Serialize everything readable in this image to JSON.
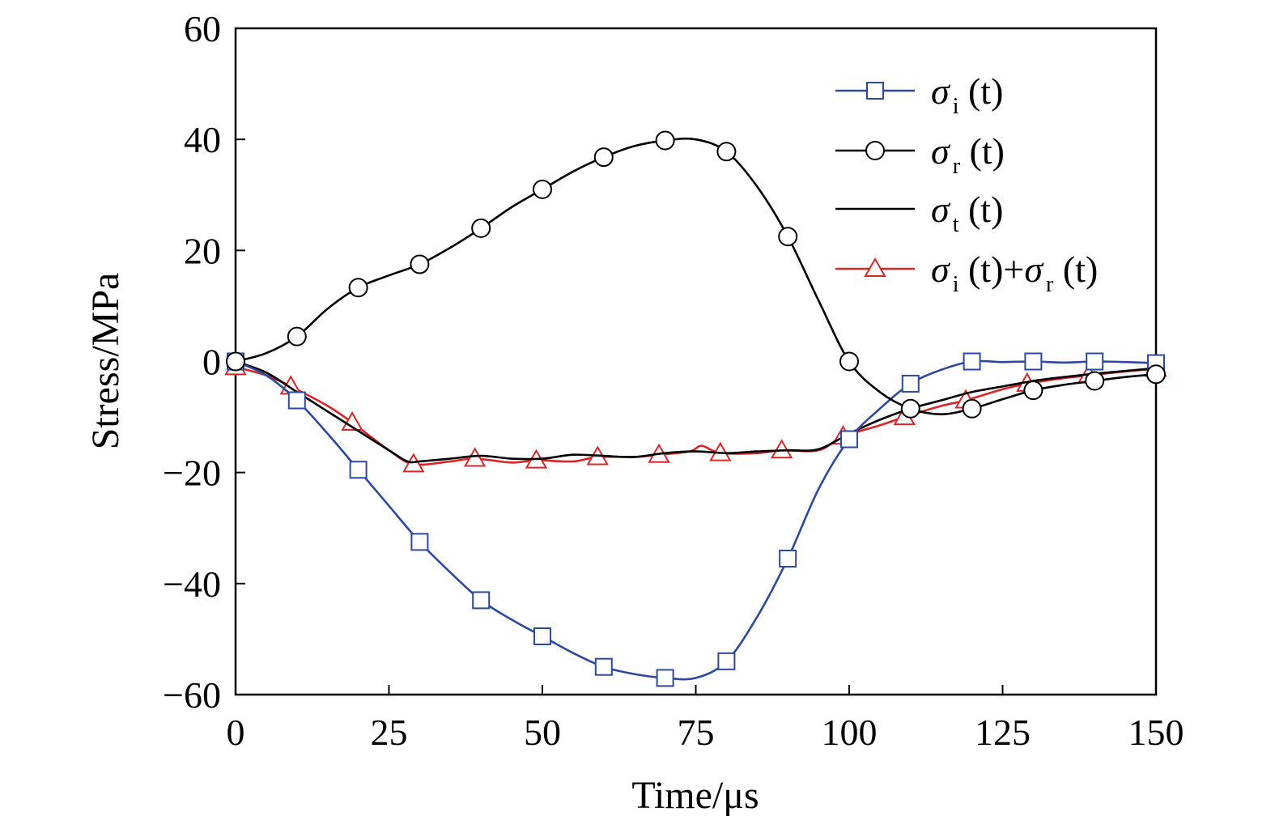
{
  "chart_data": {
    "type": "line",
    "xlabel": "Time/μs",
    "ylabel": "Stress/MPa",
    "xlim": [
      0,
      150
    ],
    "ylim": [
      -60,
      60
    ],
    "xticks": [
      0,
      25,
      50,
      75,
      100,
      125,
      150
    ],
    "yticks": [
      -60,
      -40,
      -20,
      0,
      20,
      40,
      60
    ],
    "xtick_labels": [
      "0",
      "25",
      "50",
      "75",
      "100",
      "125",
      "150"
    ],
    "ytick_labels": [
      "−60",
      "−40",
      "−20",
      "0",
      "20",
      "40",
      "60"
    ],
    "grid": false,
    "legend_position": "top-right",
    "series": [
      {
        "name": "σi (t)",
        "legend": {
          "symbol": "σ",
          "sub": "i",
          "rest": " (t)"
        },
        "color": "#2b4a9e",
        "marker": "square",
        "x": [
          0,
          5,
          10,
          15,
          20,
          25,
          30,
          35,
          40,
          45,
          50,
          55,
          60,
          65,
          70,
          75,
          80,
          85,
          90,
          95,
          100,
          105,
          110,
          115,
          120,
          125,
          130,
          135,
          140,
          145,
          150
        ],
        "y": [
          0,
          -2.5,
          -7,
          -13,
          -19.5,
          -26,
          -32.5,
          -38,
          -43,
          -46.5,
          -49.5,
          -52.5,
          -55,
          -56.3,
          -57,
          -57,
          -54,
          -46,
          -35.5,
          -23,
          -14,
          -8.5,
          -4,
          -1.5,
          0,
          -0.1,
          0,
          -0.2,
          0,
          -0.1,
          -0.3
        ],
        "marker_x": [
          0,
          10,
          20,
          30,
          40,
          50,
          60,
          70,
          80,
          90,
          100,
          110,
          120,
          130,
          140,
          150
        ],
        "marker_y": [
          0,
          -7,
          -19.5,
          -32.5,
          -43,
          -49.5,
          -55,
          -57,
          -54,
          -35.5,
          -14,
          -4,
          0,
          0,
          0,
          -0.3
        ]
      },
      {
        "name": "σr (t)",
        "legend": {
          "symbol": "σ",
          "sub": "r",
          "rest": " (t)"
        },
        "color": "#000000",
        "marker": "circle",
        "x": [
          0,
          5,
          10,
          15,
          20,
          25,
          30,
          35,
          40,
          45,
          50,
          55,
          60,
          65,
          70,
          75,
          80,
          85,
          90,
          95,
          100,
          105,
          110,
          115,
          120,
          125,
          130,
          135,
          140,
          145,
          150
        ],
        "y": [
          0,
          1.5,
          4.5,
          9.5,
          13.3,
          15.5,
          17.5,
          20.5,
          24,
          27.8,
          31,
          34.2,
          36.8,
          38.8,
          39.8,
          40,
          37.8,
          31.5,
          22.5,
          11,
          0,
          -5.5,
          -8.5,
          -9.5,
          -8.5,
          -6.8,
          -5.2,
          -4.2,
          -3.5,
          -2.8,
          -2.3
        ],
        "marker_x": [
          0,
          10,
          20,
          30,
          40,
          50,
          60,
          70,
          80,
          90,
          100,
          110,
          120,
          130,
          140,
          150
        ],
        "marker_y": [
          0,
          4.5,
          13.3,
          17.5,
          24,
          31,
          36.8,
          39.8,
          37.8,
          22.5,
          0,
          -8.5,
          -8.5,
          -5.2,
          -3.5,
          -2.3
        ]
      },
      {
        "name": "σt (t)",
        "legend": {
          "symbol": "σ",
          "sub": "t",
          "rest": " (t)"
        },
        "color": "#000000",
        "marker": "none",
        "x": [
          0,
          5,
          10,
          15,
          20,
          25,
          28,
          30,
          35,
          40,
          45,
          50,
          55,
          60,
          65,
          70,
          75,
          80,
          85,
          90,
          95,
          100,
          105,
          110,
          115,
          120,
          125,
          130,
          135,
          140,
          145,
          150
        ],
        "y": [
          0,
          -2,
          -5.5,
          -9,
          -12.5,
          -16,
          -18,
          -18,
          -17.5,
          -17,
          -17.5,
          -17.5,
          -16.8,
          -17,
          -17.2,
          -16.5,
          -16.2,
          -16.5,
          -16.2,
          -16,
          -15.8,
          -13,
          -10.5,
          -8.5,
          -7,
          -5.5,
          -4.5,
          -3.5,
          -2.8,
          -2.2,
          -1.7,
          -1.2
        ]
      },
      {
        "name": "σi (t)+σr (t)",
        "legend": {
          "symbol": "σ",
          "sub": "i",
          "rest": " (t)+",
          "symbol2": "σ",
          "sub2": "r",
          "rest2": " (t)"
        },
        "color": "#d62728",
        "marker": "triangle",
        "x": [
          0,
          5,
          9,
          15,
          19,
          25,
          29,
          35,
          39,
          45,
          49,
          55,
          59,
          65,
          69,
          74,
          76,
          79,
          85,
          89,
          95,
          99,
          105,
          109,
          115,
          119,
          125,
          129,
          135,
          139,
          145,
          150
        ],
        "y": [
          -1,
          -2.5,
          -4.5,
          -8,
          -11,
          -16,
          -18.5,
          -18,
          -17.5,
          -18.2,
          -17.8,
          -18,
          -17.2,
          -17.2,
          -16.8,
          -16.2,
          -15.2,
          -16.5,
          -16.5,
          -16,
          -16,
          -13.5,
          -11.5,
          -10,
          -8,
          -7,
          -5,
          -4,
          -3,
          -2.5,
          -1.8,
          -1.3
        ],
        "marker_x": [
          0,
          9,
          19,
          29,
          39,
          49,
          59,
          69,
          79,
          89,
          99,
          109,
          119,
          129,
          139,
          150
        ],
        "marker_y": [
          -1,
          -4.5,
          -11,
          -18.5,
          -17.5,
          -17.8,
          -17.2,
          -16.8,
          -16.5,
          -16,
          -13.5,
          -10,
          -7,
          -4,
          -2.5,
          -1.3
        ]
      }
    ]
  }
}
